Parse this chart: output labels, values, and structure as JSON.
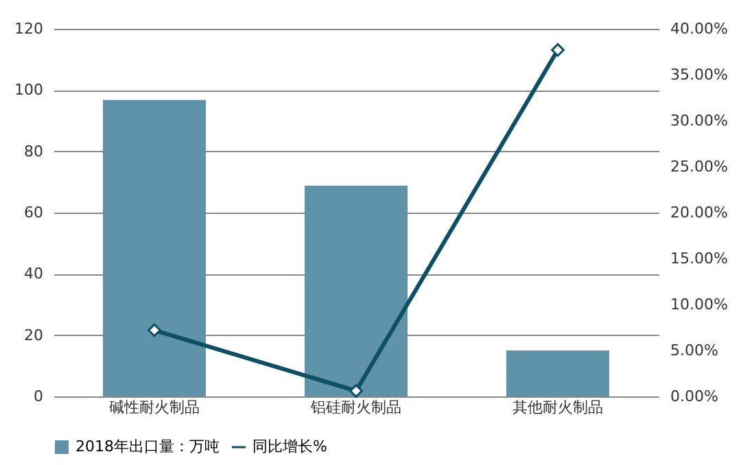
{
  "chart_data": {
    "type": "bar",
    "categories": [
      "碱性耐火制品",
      "铝硅耐火制品",
      "其他耐火制品"
    ],
    "series": [
      {
        "name": "2018年出口量：万吨",
        "color": "#5f93aa",
        "values": [
          96.8,
          68.8,
          15.0
        ]
      },
      {
        "name": "同比增长%",
        "type": "line",
        "axis": "y2",
        "color": "#0d4f65",
        "marker": "diamond",
        "values": [
          7.2,
          0.6,
          37.7
        ]
      }
    ],
    "ylim": [
      0,
      120
    ],
    "yticks": [
      0,
      20,
      40,
      60,
      80,
      100,
      120
    ],
    "y2lim": [
      0,
      40
    ],
    "y2ticks": [
      {
        "value": 0,
        "label": "0.00%"
      },
      {
        "value": 5,
        "label": "5.00%"
      },
      {
        "value": 10,
        "label": "10.00%"
      },
      {
        "value": 15,
        "label": "15.00%"
      },
      {
        "value": 20,
        "label": "20.00%"
      },
      {
        "value": 25,
        "label": "25.00%"
      },
      {
        "value": 30,
        "label": "30.00%"
      },
      {
        "value": 35,
        "label": "35.00%"
      },
      {
        "value": 40,
        "label": "40.00%"
      }
    ],
    "grid": "y",
    "legend": "bottom"
  }
}
